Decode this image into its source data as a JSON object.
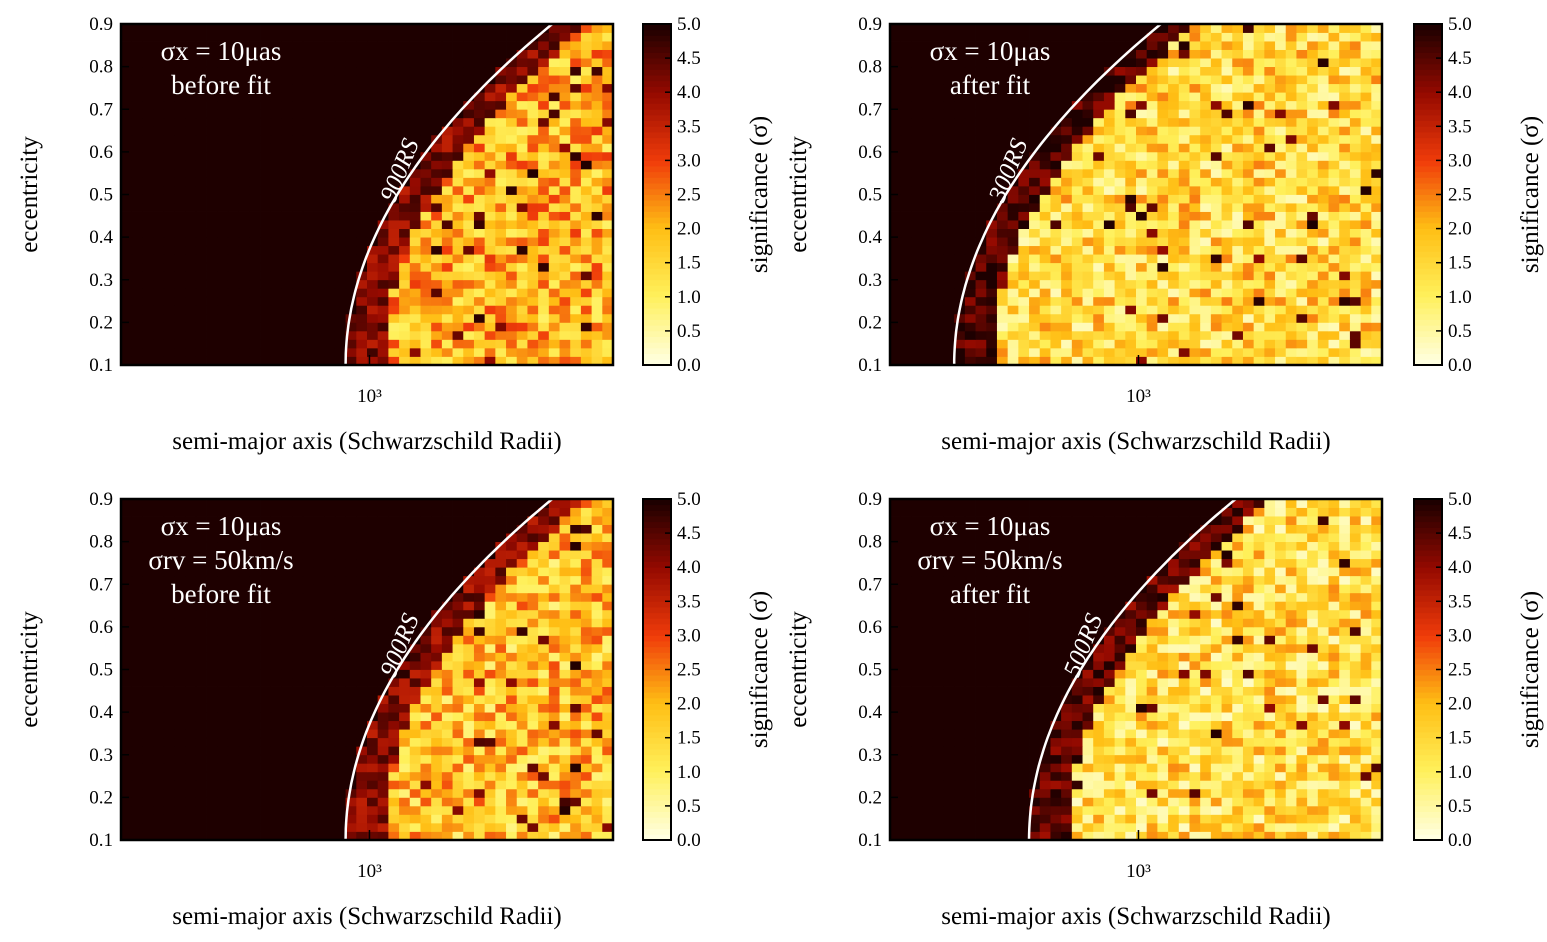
{
  "chart_data": [
    {
      "type": "heatmap",
      "panel": "top-left",
      "xlabel": "semi-major axis (Schwarzschild Radii)",
      "ylabel": "eccentricity",
      "colorbar_label": "significance (σ)",
      "x_scale": "log",
      "x_tick_label": "10³",
      "x_tick_value": 1000,
      "y_ticks": [
        "0.1",
        "0.2",
        "0.3",
        "0.4",
        "0.5",
        "0.6",
        "0.7",
        "0.8",
        "0.9"
      ],
      "ylim": [
        0.1,
        0.9
      ],
      "colorbar_ticks": [
        "0.0",
        "0.5",
        "1.0",
        "1.5",
        "2.0",
        "2.5",
        "3.0",
        "3.5",
        "4.0",
        "4.5",
        "5.0"
      ],
      "clim": [
        0,
        5
      ],
      "annotation_lines": [
        "σx = 10μas",
        "before fit"
      ],
      "curve": {
        "label": "900RS",
        "radius_rs": 900
      },
      "grid": {
        "cols": 46,
        "rows": 40,
        "threshold_col": 21,
        "noise_seed": 11,
        "base_level": 1.5,
        "edge_level": 3.5
      }
    },
    {
      "type": "heatmap",
      "panel": "top-right",
      "xlabel": "semi-major axis (Schwarzschild Radii)",
      "ylabel": "eccentricity",
      "colorbar_label": "significance (σ)",
      "x_scale": "log",
      "x_tick_label": "10³",
      "x_tick_value": 1000,
      "y_ticks": [
        "0.1",
        "0.2",
        "0.3",
        "0.4",
        "0.5",
        "0.6",
        "0.7",
        "0.8",
        "0.9"
      ],
      "ylim": [
        0.1,
        0.9
      ],
      "colorbar_ticks": [
        "0.0",
        "0.5",
        "1.0",
        "1.5",
        "2.0",
        "2.5",
        "3.0",
        "3.5",
        "4.0",
        "4.5",
        "5.0"
      ],
      "clim": [
        0,
        5
      ],
      "annotation_lines": [
        "σx = 10μas",
        "after fit"
      ],
      "curve": {
        "label": "300RS",
        "radius_rs": 300
      },
      "grid": {
        "cols": 46,
        "rows": 40,
        "threshold_col": 6,
        "noise_seed": 23,
        "base_level": 0.9,
        "edge_level": 4.0
      }
    },
    {
      "type": "heatmap",
      "panel": "bottom-left",
      "xlabel": "semi-major axis (Schwarzschild Radii)",
      "ylabel": "eccentricity",
      "colorbar_label": "significance (σ)",
      "x_scale": "log",
      "x_tick_label": "10³",
      "x_tick_value": 1000,
      "y_ticks": [
        "0.1",
        "0.2",
        "0.3",
        "0.4",
        "0.5",
        "0.6",
        "0.7",
        "0.8",
        "0.9"
      ],
      "ylim": [
        0.1,
        0.9
      ],
      "colorbar_ticks": [
        "0.0",
        "0.5",
        "1.0",
        "1.5",
        "2.0",
        "2.5",
        "3.0",
        "3.5",
        "4.0",
        "4.5",
        "5.0"
      ],
      "clim": [
        0,
        5
      ],
      "annotation_lines": [
        "σx = 10μas",
        "σrv = 50km/s",
        "before fit"
      ],
      "curve": {
        "label": "900RS",
        "radius_rs": 900
      },
      "grid": {
        "cols": 46,
        "rows": 40,
        "threshold_col": 21,
        "noise_seed": 37,
        "base_level": 1.3,
        "edge_level": 3.5
      }
    },
    {
      "type": "heatmap",
      "panel": "bottom-right",
      "xlabel": "semi-major axis (Schwarzschild Radii)",
      "ylabel": "eccentricity",
      "colorbar_label": "significance (σ)",
      "x_scale": "log",
      "x_tick_label": "10³",
      "x_tick_value": 1000,
      "y_ticks": [
        "0.1",
        "0.2",
        "0.3",
        "0.4",
        "0.5",
        "0.6",
        "0.7",
        "0.8",
        "0.9"
      ],
      "ylim": [
        0.1,
        0.9
      ],
      "colorbar_ticks": [
        "0.0",
        "0.5",
        "1.0",
        "1.5",
        "2.0",
        "2.5",
        "3.0",
        "3.5",
        "4.0",
        "4.5",
        "5.0"
      ],
      "clim": [
        0,
        5
      ],
      "annotation_lines": [
        "σx = 10μas",
        "σrv = 50km/s",
        "after fit"
      ],
      "curve": {
        "label": "500RS",
        "radius_rs": 500
      },
      "grid": {
        "cols": 46,
        "rows": 40,
        "threshold_col": 13,
        "noise_seed": 51,
        "base_level": 0.8,
        "edge_level": 3.8
      }
    }
  ]
}
